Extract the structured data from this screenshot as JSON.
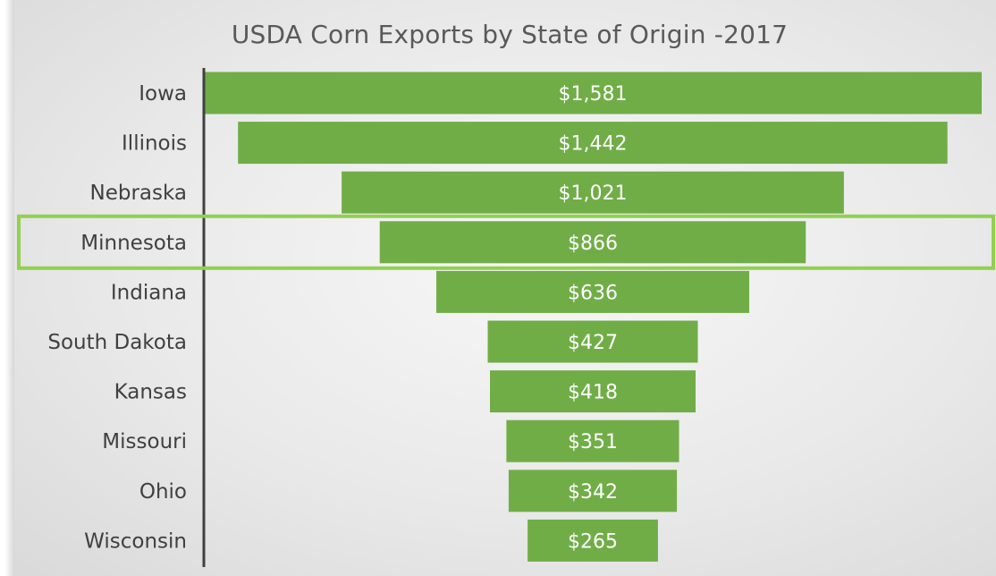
{
  "chart_data": {
    "type": "bar",
    "subtype": "funnel",
    "title": "USDA Corn Exports by State of Origin -2017",
    "categories": [
      "Iowa",
      "Illinois",
      "Nebraska",
      "Minnesota",
      "Indiana",
      "South Dakota",
      "Kansas",
      "Missouri",
      "Ohio",
      "Wisconsin"
    ],
    "values": [
      1581,
      1442,
      1021,
      866,
      636,
      427,
      418,
      351,
      342,
      265
    ],
    "value_labels": [
      "$1,581",
      "$1,442",
      "$1,021",
      "$866",
      "$636",
      "$427",
      "$418",
      "$351",
      "$342",
      "$265"
    ],
    "highlighted_category": "Minnesota",
    "colors": {
      "bar": "#70ad47",
      "highlight_outline": "#92d050",
      "axis": "#404040",
      "category_text": "#404040",
      "value_text": "#ffffff"
    },
    "grid": false,
    "legend": "none"
  }
}
